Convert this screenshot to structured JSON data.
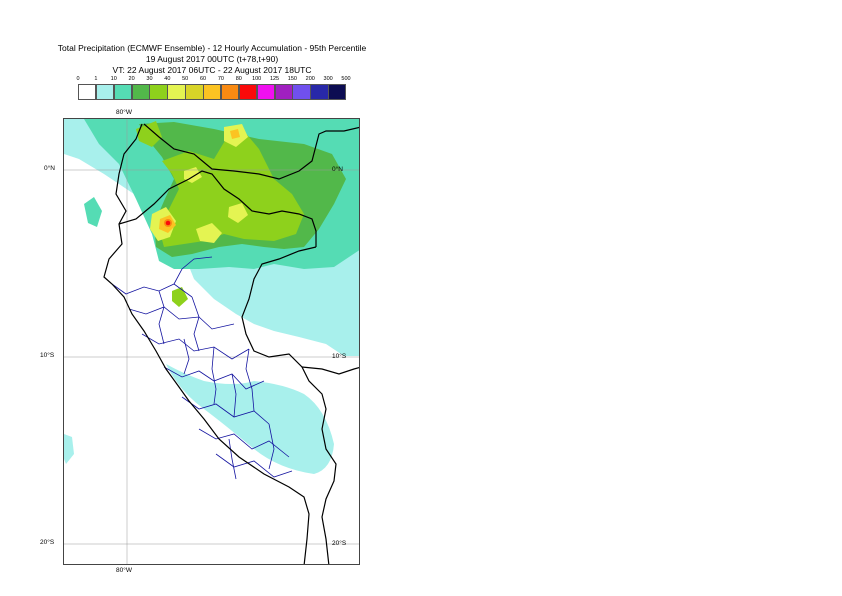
{
  "header": {
    "title_line1": "Total Precipitation (ECMWF Ensemble) - 12 Hourly Accumulation - 95th Percentile",
    "title_line2": "19 August 2017 00UTC (t+78,t+90)",
    "title_line3": "VT: 22 August 2017 06UTC - 22 August 2017 18UTC"
  },
  "legend": {
    "ticks": [
      "0",
      "1",
      "10",
      "20",
      "30",
      "40",
      "50",
      "60",
      "70",
      "80",
      "100",
      "125",
      "150",
      "200",
      "300",
      "500"
    ],
    "colors": [
      "#ffffff",
      "#a8f0ec",
      "#55dcb4",
      "#52b84a",
      "#8ed11c",
      "#e4f452",
      "#d8d428",
      "#fbc322",
      "#f98a12",
      "#fa0a0a",
      "#f010f0",
      "#a020c0",
      "#7050ee",
      "#2828a8",
      "#0c0c52"
    ]
  },
  "map": {
    "lat_labels": [
      "0°N",
      "10°S",
      "20°S"
    ],
    "lon_labels": [
      "80°W"
    ],
    "colors": {
      "country_border": "#000000",
      "region_border": "#1414a0",
      "gridline": "#999999"
    }
  }
}
